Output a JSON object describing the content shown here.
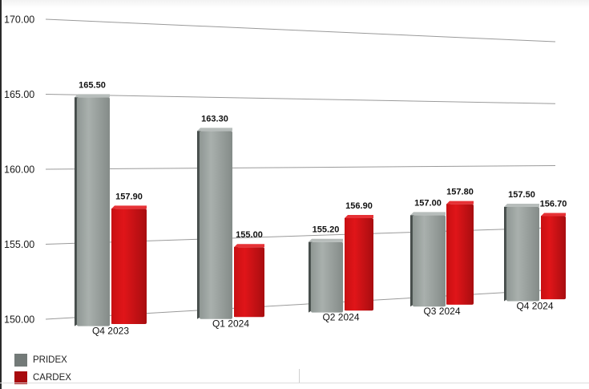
{
  "chart_data": {
    "type": "bar",
    "style": "3d-clustered-column",
    "title": "",
    "xlabel": "",
    "ylabel": "",
    "categories": [
      "Q4 2023",
      "Q1 2024",
      "Q2 2024",
      "Q3 2024",
      "Q4 2024"
    ],
    "series": [
      {
        "name": "PRIDEX",
        "color": "#7d8582",
        "values": [
          165.5,
          163.3,
          155.2,
          157.0,
          157.5
        ]
      },
      {
        "name": "CARDEX",
        "color": "#b30f12",
        "values": [
          157.9,
          155.0,
          156.9,
          157.8,
          156.7
        ]
      }
    ],
    "value_labels": [
      [
        "165.50",
        "163.30",
        "155.20",
        "157.00",
        "157.50"
      ],
      [
        "157.90",
        "155.00",
        "156.90",
        "157.80",
        "156.70"
      ]
    ],
    "yticks": [
      "150.00",
      "155.00",
      "160.00",
      "165.00",
      "170.00"
    ],
    "ylim": [
      150,
      170
    ],
    "grid": true,
    "legend_position": "bottom-left"
  },
  "legend": {
    "items": [
      {
        "label": "PRIDEX",
        "color": "#737a78"
      },
      {
        "label": "CARDEX",
        "color": "#a80b0e"
      }
    ]
  }
}
